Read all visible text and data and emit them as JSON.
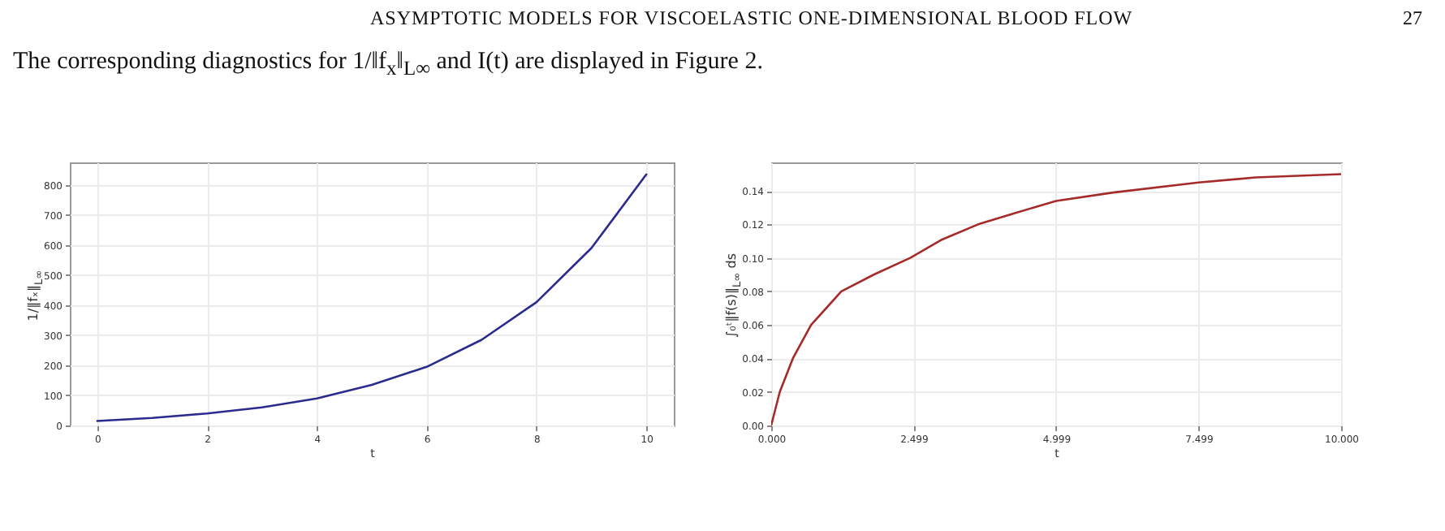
{
  "chart_data": [
    {
      "type": "line",
      "annotations": [
        "ASYMPTOTIC MODELS FOR VISCOELASTIC ONE-DIMENSIONAL BLOOD FLOW",
        "27",
        "The corresponding diagnostics for 1/‖f$_{x}$‖$_{L∞}$ and I(t) are displayed in Figure 2."
      ],
      "xlabel": "t",
      "ylabel": "1/‖fₓ‖$_{L∞}$",
      "x": [
        0,
        1,
        2,
        3,
        4,
        5,
        6,
        7,
        8,
        9,
        10
      ],
      "series": [
        {
          "color": "#2b2b8f",
          "values": [
            15,
            25,
            40,
            60,
            90,
            135,
            195,
            285,
            410,
            590,
            835
          ]
        }
      ],
      "xlim": [
        -0.5,
        10.5
      ],
      "ylim": [
        0,
        875
      ],
      "xticks": [
        0,
        2,
        4,
        6,
        8,
        10
      ],
      "yticks": [
        0,
        100,
        200,
        300,
        400,
        500,
        600,
        700,
        800
      ],
      "grid": true
    },
    {
      "type": "line",
      "xlabel": "t",
      "ylabel": "∫₀ᵗ‖f(s)‖$_{L∞}$ ds",
      "x": [
        0,
        0.15,
        0.38,
        0.7,
        1.23,
        1.8,
        2.44,
        3,
        3.63,
        4.3,
        5,
        6,
        7.5,
        8.5,
        10
      ],
      "series": [
        {
          "color": "#a52a2a",
          "values": [
            0,
            0.02,
            0.04,
            0.06,
            0.08,
            0.09,
            0.1,
            0.111,
            0.12,
            0.127,
            0.134,
            0.139,
            0.145,
            0.148,
            0.15
          ]
        }
      ],
      "xlim": [
        0,
        10
      ],
      "ylim": [
        0,
        0.157
      ],
      "xticks": [
        {
          "value": 0,
          "label": "0.000"
        },
        {
          "value": 2.499,
          "label": "2.499"
        },
        {
          "value": 4.999,
          "label": "4.999"
        },
        {
          "value": 7.499,
          "label": "7.499"
        },
        {
          "value": 10,
          "label": "10.000"
        }
      ],
      "yticks": [
        {
          "value": 0,
          "label": "0.00"
        },
        {
          "value": 0.02,
          "label": "0.02"
        },
        {
          "value": 0.04,
          "label": "0.04"
        },
        {
          "value": 0.06,
          "label": "0.06"
        },
        {
          "value": 0.08,
          "label": "0.08"
        },
        {
          "value": 0.1,
          "label": "0.10"
        },
        {
          "value": 0.12,
          "label": "0.12"
        },
        {
          "value": 0.14,
          "label": "0.14"
        }
      ],
      "grid": true
    }
  ]
}
